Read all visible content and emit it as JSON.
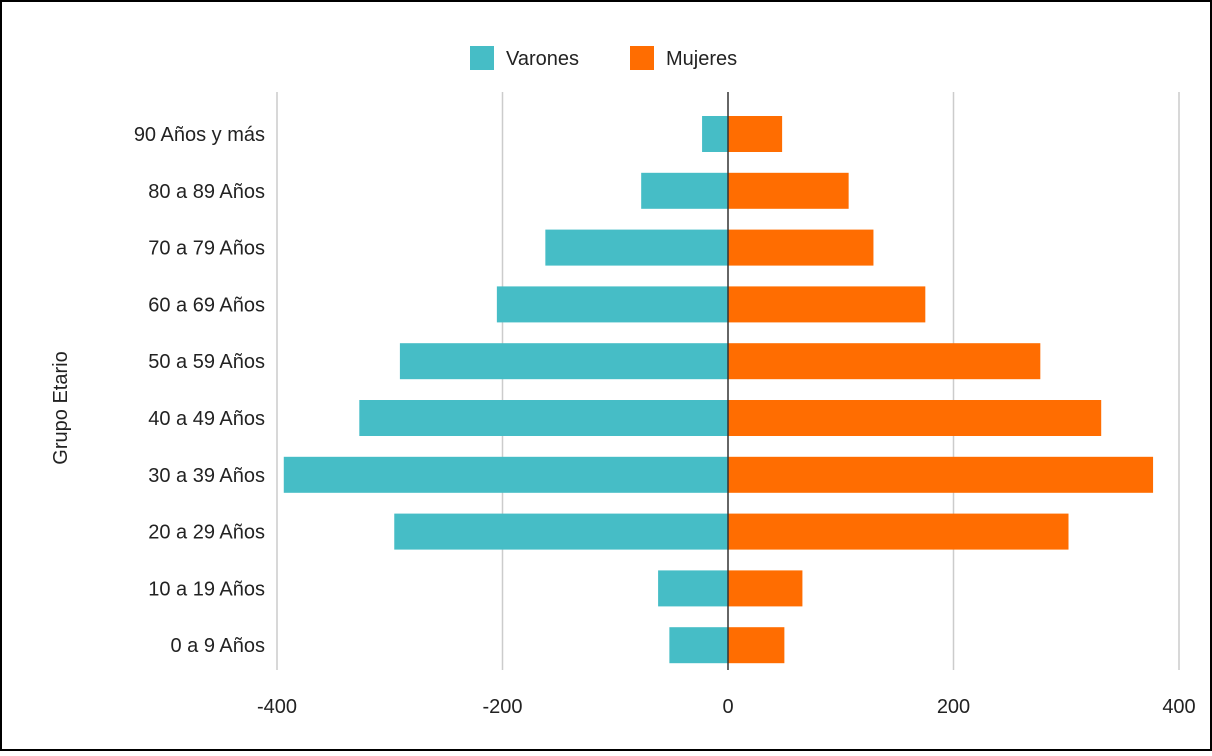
{
  "chart_data": {
    "type": "bar",
    "orientation": "horizontal",
    "layout": "diverging",
    "categories": [
      "90 Años y más",
      "80 a 89 Años",
      "70 a 79 Años",
      "60 a 69 Años",
      "50 a 59 Años",
      "40 a 49 Años",
      "30 a 39 Años",
      "20 a 29 Años",
      "10 a 19 Años",
      "0 a 9 Años"
    ],
    "series": [
      {
        "name": "Varones",
        "color": "#46bdc6",
        "values": [
          -23,
          -77,
          -162,
          -205,
          -291,
          -327,
          -394,
          -296,
          -62,
          -52
        ]
      },
      {
        "name": "Mujeres",
        "color": "#ff6d01",
        "values": [
          48,
          107,
          129,
          175,
          277,
          331,
          377,
          302,
          66,
          50
        ]
      }
    ],
    "title": "",
    "xlabel": "",
    "ylabel": "Grupo Etario",
    "xlim": [
      -400,
      400
    ],
    "xticks": [
      -400,
      -200,
      0,
      200,
      400
    ],
    "xtick_labels": [
      "-400",
      "-200",
      "0",
      "200",
      "400"
    ],
    "grid": "vertical",
    "legend_position": "top"
  }
}
